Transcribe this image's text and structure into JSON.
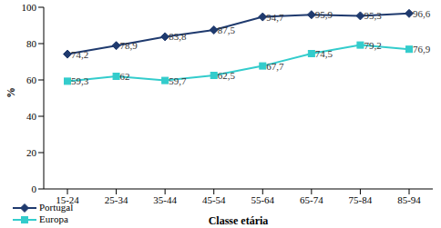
{
  "chart_data": {
    "type": "line",
    "categories": [
      "15-24",
      "25-34",
      "35-44",
      "45-54",
      "55-64",
      "65-74",
      "75-84",
      "85-94"
    ],
    "series": [
      {
        "name": "Portugal",
        "color": "#1f3a6e",
        "marker": "diamond",
        "values": [
          74.2,
          78.9,
          83.8,
          87.5,
          94.7,
          95.9,
          95.3,
          96.6
        ],
        "value_labels": [
          "74,2",
          "78,9",
          "83,8",
          "87,5",
          "94,7",
          "95,9",
          "95,3",
          "96,6"
        ]
      },
      {
        "name": "Europa",
        "color": "#33cccc",
        "marker": "square",
        "values": [
          59.3,
          62,
          59.7,
          62.5,
          67.7,
          74.5,
          79.2,
          76.9
        ],
        "value_labels": [
          "59,3",
          "62",
          "59,7",
          "62,5",
          "67,7",
          "74,5",
          "79,2",
          "76,9"
        ]
      }
    ],
    "xlabel": "Classe etária",
    "ylabel": "%",
    "ylim": [
      0,
      100
    ],
    "yticks": [
      0,
      20,
      40,
      60,
      80,
      100
    ],
    "grid": false,
    "legend": "lower left",
    "data_labels": true
  }
}
